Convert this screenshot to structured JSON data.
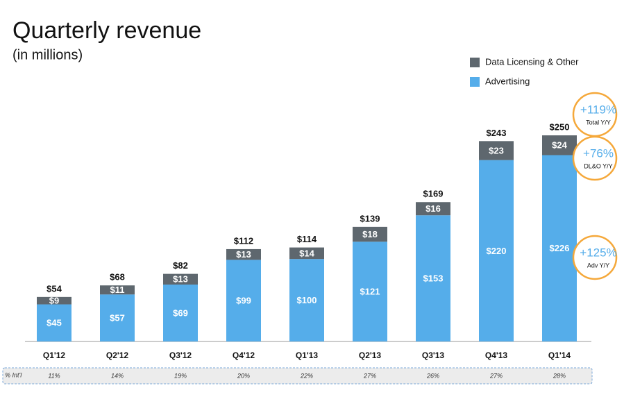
{
  "chart_data": {
    "type": "stacked-bar",
    "title": "Quarterly revenue",
    "subtitle": "(in millions)",
    "categories": [
      "Q1'12",
      "Q2'12",
      "Q3'12",
      "Q4'12",
      "Q1'13",
      "Q2'13",
      "Q3'13",
      "Q4'13",
      "Q1'14"
    ],
    "series": [
      {
        "name": "Advertising",
        "color": "#55adea",
        "values": [
          45,
          57,
          69,
          99,
          100,
          121,
          153,
          220,
          226
        ],
        "value_labels": [
          "$45",
          "$57",
          "$69",
          "$99",
          "$100",
          "$121",
          "$153",
          "$220",
          "$226"
        ]
      },
      {
        "name": "Data Licensing  & Other",
        "color": "#5e676e",
        "values": [
          9,
          11,
          13,
          13,
          14,
          18,
          16,
          23,
          24
        ],
        "value_labels": [
          "$9",
          "$11",
          "$13",
          "$13",
          "$14",
          "$18",
          "$16",
          "$23",
          "$24"
        ]
      }
    ],
    "totals": {
      "values": [
        54,
        68,
        82,
        112,
        114,
        139,
        169,
        243,
        250
      ],
      "value_labels": [
        "$54",
        "$68",
        "$82",
        "$112",
        "$114",
        "$139",
        "$169",
        "$243",
        "$250"
      ]
    },
    "ylim": [
      0,
      250
    ],
    "legend": "top-right",
    "intl": {
      "label": "% Int'l",
      "values": [
        "11%",
        "14%",
        "19%",
        "20%",
        "22%",
        "27%",
        "26%",
        "27%",
        "28%"
      ]
    },
    "annotations": [
      {
        "text": "+119%",
        "label": "Total Y/Y"
      },
      {
        "text": "+76%",
        "label": "DL&O Y/Y"
      },
      {
        "text": "+125%",
        "label": "Adv Y/Y"
      }
    ]
  }
}
